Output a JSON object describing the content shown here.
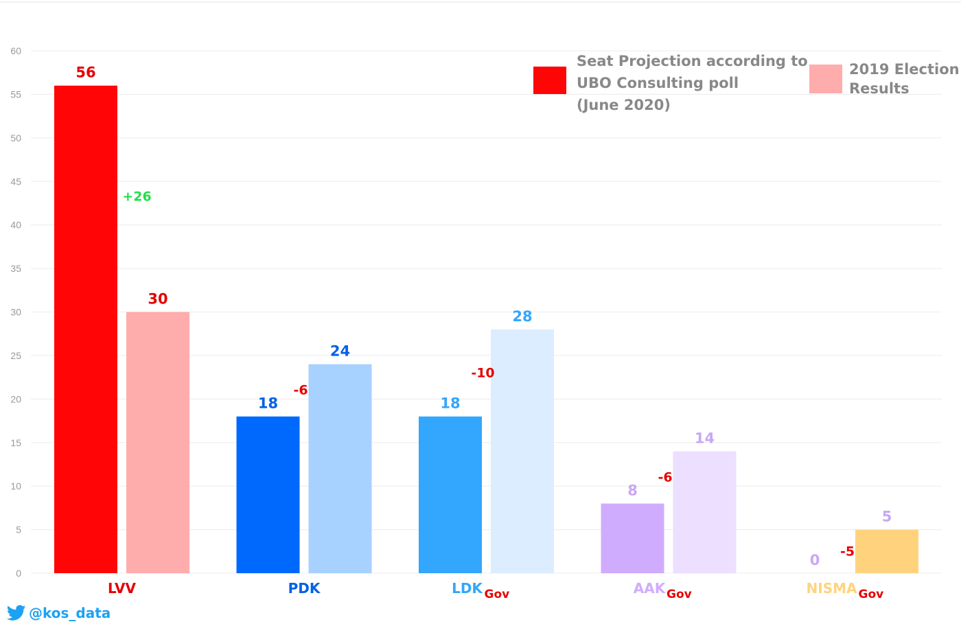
{
  "chart_data": {
    "type": "bar",
    "categories": [
      "LVV",
      "PDK",
      "LDK",
      "AAK",
      "NISMA"
    ],
    "category_suffix": [
      "",
      "",
      "Gov",
      "Gov",
      "Gov"
    ],
    "series": [
      {
        "name": "Seat Projection according to UBO Consulting poll (June 2020)",
        "values": [
          56,
          18,
          18,
          8,
          0
        ],
        "colors": [
          "#ff0505",
          "#0069fd",
          "#33a6fd",
          "#d0acff",
          "#ffd37e"
        ]
      },
      {
        "name": "2019 Election Results",
        "values": [
          30,
          24,
          28,
          14,
          5
        ],
        "colors": [
          "#ffacad",
          "#a7d1ff",
          "#dcedff",
          "#ecdfff",
          "#ffd37e"
        ]
      }
    ],
    "value_label_colors": [
      [
        "#e60000",
        "#0061e6",
        "#33a6fd",
        "#c8a8f5",
        "#c8a8f5"
      ],
      [
        "#e60000",
        "#0061e6",
        "#33a6fd",
        "#c8a8f5",
        "#c8a8f5"
      ]
    ],
    "differences": [
      "+26",
      "-6",
      "-10",
      "-6",
      "-5"
    ],
    "difference_colors": [
      "#1ee04a",
      "#e60000",
      "#e60000",
      "#e60000",
      "#e60000"
    ],
    "category_label_colors": [
      "#e60000",
      "#0061e6",
      "#33a6fd",
      "#d0acff",
      "#ffd37e"
    ],
    "gov_label_color": "#e60000",
    "ylim": [
      0,
      60
    ],
    "yticks": [
      0,
      5,
      10,
      15,
      20,
      25,
      30,
      35,
      40,
      45,
      50,
      55,
      60
    ],
    "grid": true,
    "legend_placement": "top-right",
    "legend": [
      {
        "lines": [
          "Seat Projection according to",
          "UBO Consulting poll",
          "(June 2020)"
        ],
        "color": "#ff0505"
      },
      {
        "lines": [
          "2019 Election",
          "Results"
        ],
        "color": "#ffacad"
      }
    ]
  },
  "credit": {
    "icon": "twitter-bird-icon",
    "handle": "@kos_data",
    "color": "#1da1f2"
  }
}
